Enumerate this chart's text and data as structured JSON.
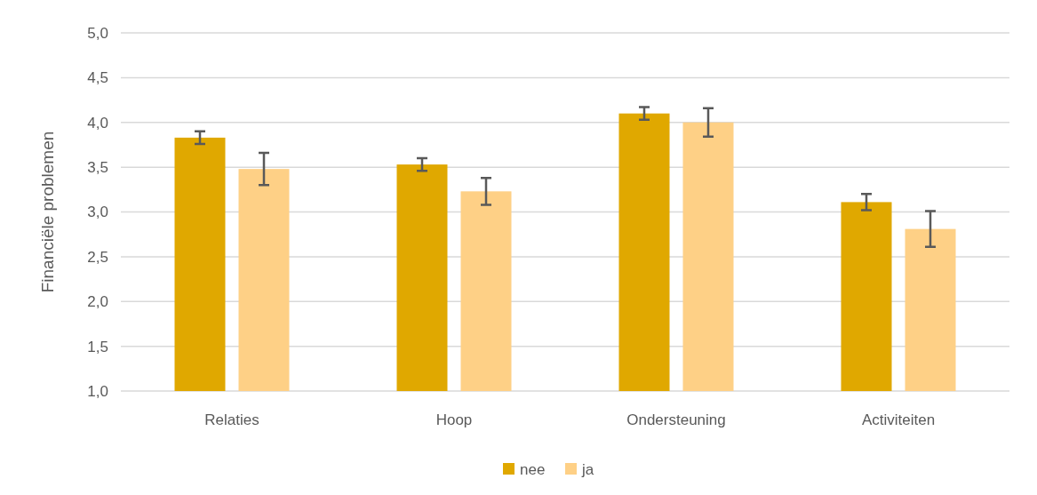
{
  "chart_data": {
    "type": "bar",
    "ylabel": "Financiële problemen",
    "categories": [
      "Relaties",
      "Hoop",
      "Ondersteuning",
      "Activiteiten"
    ],
    "series": [
      {
        "name": "nee",
        "color": "#e0a800",
        "values": [
          3.83,
          3.53,
          4.1,
          3.11
        ],
        "errors": [
          0.07,
          0.07,
          0.07,
          0.09
        ]
      },
      {
        "name": "ja",
        "color": "#fed086",
        "values": [
          3.48,
          3.23,
          4.0,
          2.81
        ],
        "errors": [
          0.18,
          0.15,
          0.16,
          0.2
        ]
      }
    ],
    "ylim": [
      1,
      5
    ],
    "yticks": [
      {
        "value": 1,
        "label": "1,0"
      },
      {
        "value": 1.5,
        "label": "1,5"
      },
      {
        "value": 2,
        "label": "2,0"
      },
      {
        "value": 2.5,
        "label": "2,5"
      },
      {
        "value": 3,
        "label": "3,0"
      },
      {
        "value": 3.5,
        "label": "3,5"
      },
      {
        "value": 4,
        "label": "4,0"
      },
      {
        "value": 4.5,
        "label": "4,5"
      },
      {
        "value": 5,
        "label": "5,0"
      }
    ],
    "grid": "y",
    "legend": "bottom"
  }
}
